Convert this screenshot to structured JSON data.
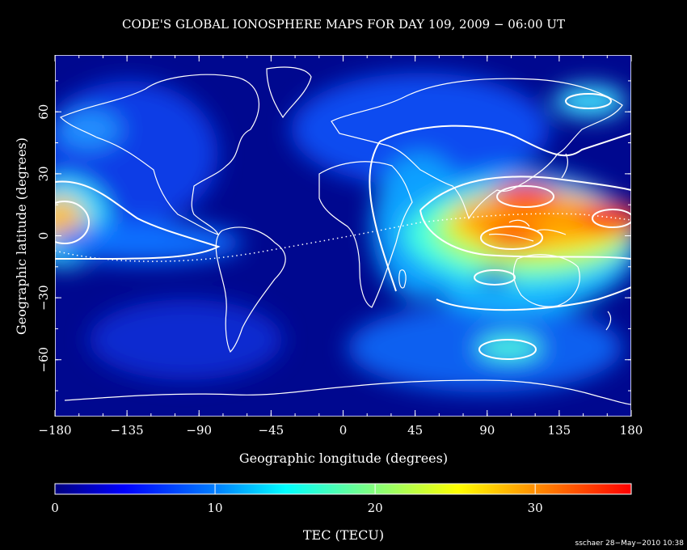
{
  "title": "CODE'S GLOBAL IONOSPHERE MAPS FOR DAY 109, 2009 − 06:00 UT",
  "x_axis": {
    "label": "Geographic longitude (degrees)",
    "ticks": [
      "−180",
      "−135",
      "−90",
      "−45",
      "0",
      "45",
      "90",
      "135",
      "180"
    ]
  },
  "y_axis": {
    "label": "Geographic latitude (degrees)",
    "ticks": [
      "−60",
      "−30",
      "0",
      "30",
      "60"
    ]
  },
  "colorbar": {
    "label": "TEC (TECU)",
    "ticks": [
      "0",
      "10",
      "20",
      "30"
    ],
    "range": [
      0,
      36
    ],
    "colormap": [
      "#00007f",
      "#0000ff",
      "#0080ff",
      "#00ffff",
      "#80ff80",
      "#ffff00",
      "#ff8000",
      "#ff0000"
    ]
  },
  "credit": "sschaer 28−May−2010 10:38",
  "map": {
    "projection": "equirectangular",
    "lon_range": [
      -180,
      180
    ],
    "lat_range": [
      -87.5,
      87.5
    ],
    "tec_maxima": [
      {
        "lon": 165,
        "lat": 8,
        "tecu": 36
      },
      {
        "lon": 115,
        "lat": 12,
        "tecu": 35
      },
      {
        "lon": 110,
        "lat": -1,
        "tecu": 34
      },
      {
        "lon": -178,
        "lat": 5,
        "tecu": 27
      }
    ]
  }
}
